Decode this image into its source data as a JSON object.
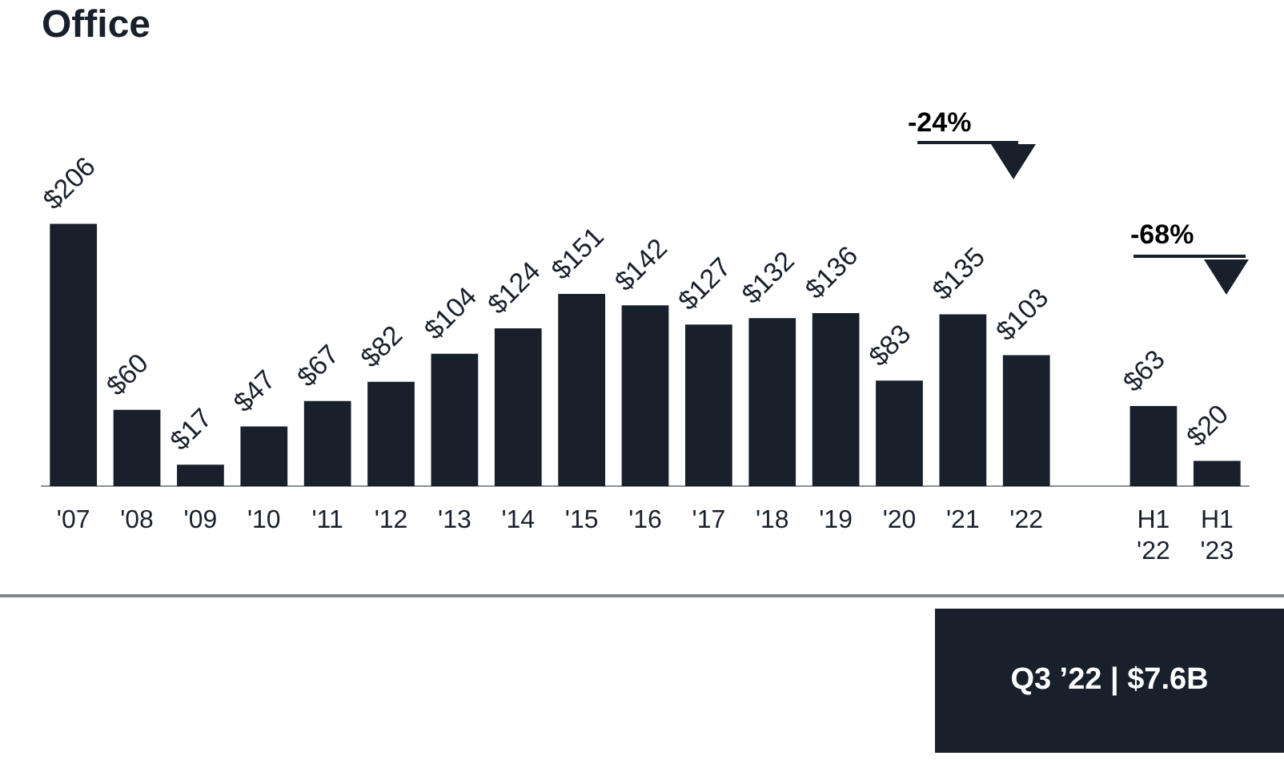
{
  "chart_data": {
    "type": "bar",
    "title": "Office",
    "categories": [
      "'07",
      "'08",
      "'09",
      "'10",
      "'11",
      "'12",
      "'13",
      "'14",
      "'15",
      "'16",
      "'17",
      "'18",
      "'19",
      "'20",
      "'21",
      "'22",
      null,
      "H1 '22",
      "H1 '23"
    ],
    "values": [
      206,
      60,
      17,
      47,
      67,
      82,
      104,
      124,
      151,
      142,
      127,
      132,
      136,
      83,
      135,
      103,
      null,
      63,
      20
    ],
    "value_labels": [
      "$206",
      "$60",
      "$17",
      "$47",
      "$67",
      "$82",
      "$104",
      "$124",
      "$151",
      "$142",
      "$127",
      "$132",
      "$136",
      "$83",
      "$135",
      "$103",
      null,
      "$63",
      "$20"
    ],
    "color": "#18202b",
    "annotations": [
      "-24%",
      "-68%",
      "Q3 ’22 | $7.6B"
    ],
    "grid": false,
    "legend": false,
    "tick_labels": "x"
  }
}
